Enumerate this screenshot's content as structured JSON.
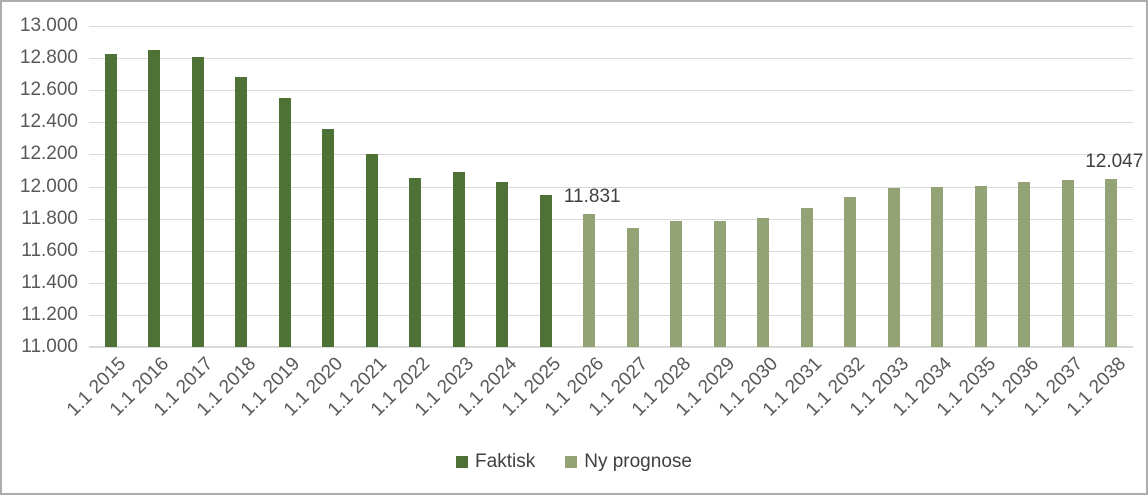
{
  "chart_data": {
    "type": "bar",
    "title": "",
    "xlabel": "",
    "ylabel": "",
    "categories": [
      "1.1 2015",
      "1.1 2016",
      "1.1 2017",
      "1.1 2018",
      "1.1 2019",
      "1.1 2020",
      "1.1 2021",
      "1.1 2022",
      "1.1 2023",
      "1.1 2024",
      "1.1 2025",
      "1.1 2026",
      "1.1 2027",
      "1.1 2028",
      "1.1 2029",
      "1.1 2030",
      "1.1 2031",
      "1.1 2032",
      "1.1 2033",
      "1.1 2034",
      "1.1 2035",
      "1.1 2036",
      "1.1 2037",
      "1.1 2038"
    ],
    "series": [
      {
        "name": "Faktisk",
        "color": "#4E7135",
        "values": [
          12825,
          12850,
          12805,
          12680,
          12550,
          12360,
          12205,
          12050,
          12090,
          12025,
          11950,
          null,
          null,
          null,
          null,
          null,
          null,
          null,
          null,
          null,
          null,
          null,
          null,
          null
        ]
      },
      {
        "name": "Ny prognose",
        "color": "#94A375",
        "values": [
          null,
          null,
          null,
          null,
          null,
          null,
          null,
          null,
          null,
          null,
          null,
          11831,
          11740,
          11785,
          11785,
          11805,
          11865,
          11935,
          11990,
          12000,
          12005,
          12030,
          12040,
          12047
        ]
      }
    ],
    "ylim": [
      11000,
      13000
    ],
    "ytick_step": 200,
    "ytick_labels": [
      "13.000",
      "12.800",
      "12.600",
      "12.400",
      "12.200",
      "12.000",
      "11.800",
      "11.600",
      "11.400",
      "11.200",
      "11.000"
    ],
    "grid": true,
    "legend_position": "bottom",
    "annotations": [
      {
        "text": "11.831",
        "category_index": 11,
        "value": 11831
      },
      {
        "text": "12.047",
        "category_index": 23,
        "value": 12047
      }
    ]
  },
  "colors": {
    "faktisk": "#4E7135",
    "ny_prognose": "#94A375",
    "gridline": "#D9D9D9",
    "axis_line": "#D9D9D9",
    "tick_label": "#595959",
    "data_label": "#3F3F3F",
    "frame_border": "#ACACAC",
    "background": "#FFFFFF"
  }
}
